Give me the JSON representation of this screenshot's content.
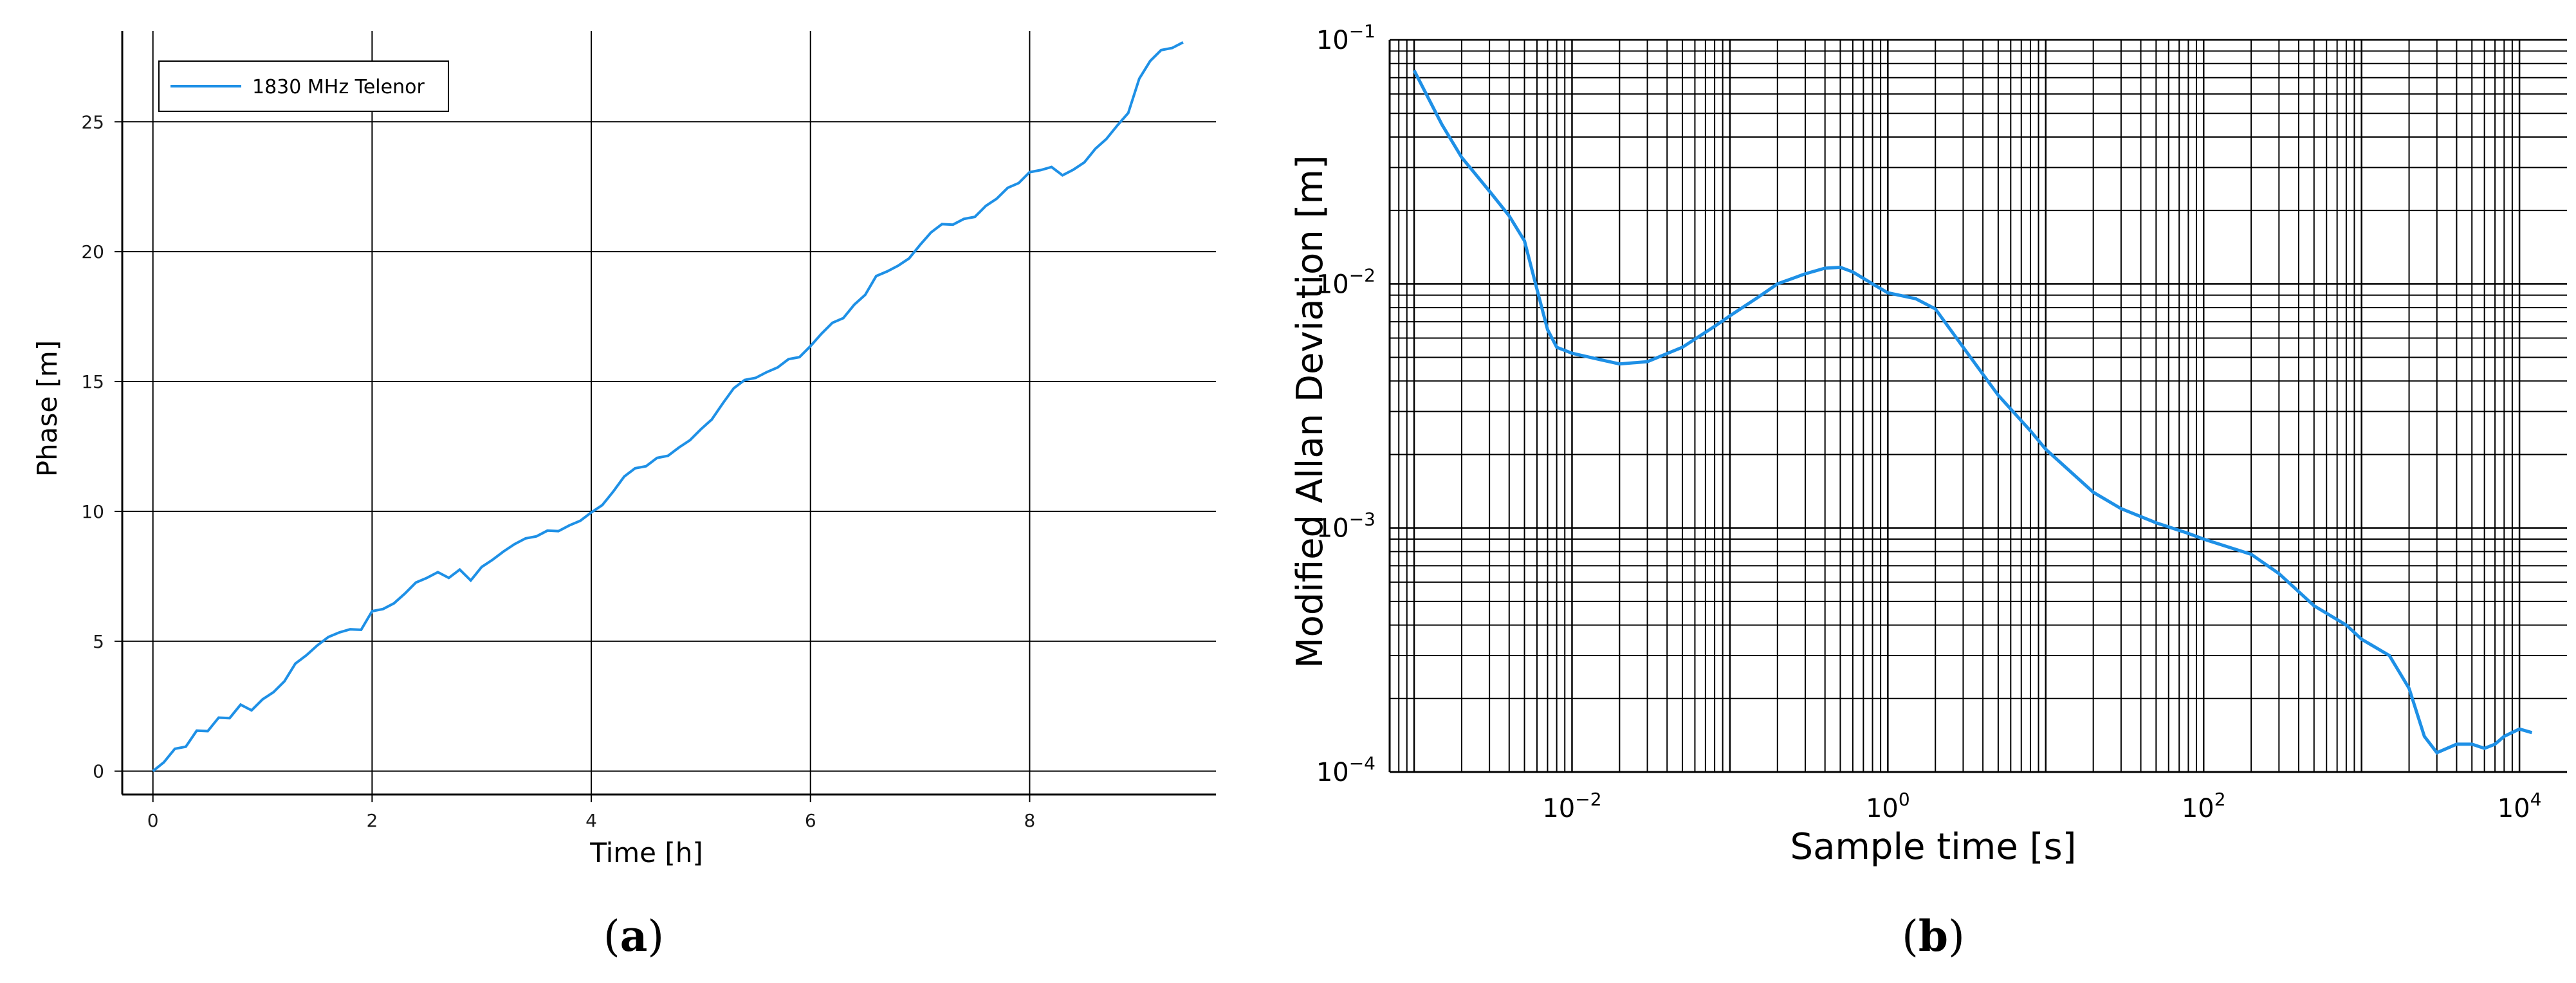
{
  "colors": {
    "series": "#1e90e6",
    "grid": "#000000",
    "axis": "#000000",
    "background": "#ffffff"
  },
  "chart_data": [
    {
      "type": "line",
      "panel_caption": "a",
      "xlabel": "Time [h]",
      "ylabel": "Phase [m]",
      "xlim": [
        -0.28,
        9.7
      ],
      "ylim": [
        -0.9,
        28.5
      ],
      "xticks": [
        0,
        2,
        4,
        6,
        8
      ],
      "yticks": [
        0,
        5,
        10,
        15,
        20,
        25
      ],
      "grid": true,
      "legend": "top-left",
      "series": [
        {
          "name": "1830 MHz Telenor",
          "x": [
            0,
            0.1,
            0.2,
            0.3,
            0.4,
            0.5,
            0.6,
            0.7,
            0.8,
            0.9,
            1.0,
            1.1,
            1.2,
            1.3,
            1.4,
            1.5,
            1.6,
            1.7,
            1.8,
            1.9,
            2.0,
            2.1,
            2.2,
            2.3,
            2.4,
            2.5,
            2.6,
            2.7,
            2.8,
            2.9,
            3.0,
            3.1,
            3.2,
            3.3,
            3.4,
            3.5,
            3.6,
            3.7,
            3.8,
            3.9,
            4.0,
            4.1,
            4.2,
            4.3,
            4.4,
            4.5,
            4.6,
            4.7,
            4.8,
            4.9,
            5.0,
            5.1,
            5.2,
            5.3,
            5.4,
            5.5,
            5.6,
            5.7,
            5.8,
            5.9,
            6.0,
            6.1,
            6.2,
            6.3,
            6.4,
            6.5,
            6.6,
            6.7,
            6.8,
            6.9,
            7.0,
            7.1,
            7.2,
            7.3,
            7.4,
            7.5,
            7.6,
            7.7,
            7.8,
            7.9,
            8.0,
            8.1,
            8.2,
            8.3,
            8.4,
            8.5,
            8.6,
            8.7,
            8.8,
            8.9,
            9.0,
            9.1,
            9.2,
            9.3,
            9.4
          ],
          "y": [
            0,
            0.4,
            0.8,
            1.0,
            1.5,
            1.6,
            2.0,
            2.1,
            2.5,
            2.4,
            2.7,
            3.1,
            3.4,
            4.2,
            4.4,
            4.9,
            5.1,
            5.4,
            5.4,
            5.5,
            6.1,
            6.3,
            6.4,
            6.9,
            7.2,
            7.5,
            7.6,
            7.5,
            7.7,
            7.4,
            7.8,
            8.2,
            8.4,
            8.8,
            8.9,
            9.1,
            9.2,
            9.3,
            9.4,
            9.7,
            9.9,
            10.3,
            10.7,
            11.4,
            11.6,
            11.8,
            12.0,
            12.2,
            12.4,
            12.8,
            13.1,
            13.6,
            14.1,
            14.8,
            15.0,
            15.2,
            15.3,
            15.6,
            15.8,
            16.0,
            16.3,
            16.9,
            17.2,
            17.5,
            17.9,
            18.4,
            19.0,
            19.3,
            19.4,
            19.8,
            20.2,
            20.8,
            21.0,
            21.1,
            21.2,
            21.4,
            21.7,
            22.1,
            22.4,
            22.7,
            23.0,
            23.2,
            23.2,
            23.0,
            23.1,
            23.5,
            23.9,
            24.4,
            24.8,
            25.4,
            26.6,
            27.4,
            27.7,
            27.9,
            28.0
          ]
        }
      ]
    },
    {
      "type": "line",
      "panel_caption": "b",
      "xlabel": "Sample time [s]",
      "ylabel": "Modified Allan Deviation [m]",
      "xscale": "log",
      "yscale": "log",
      "xlim": [
        0.0007,
        20000
      ],
      "ylim": [
        0.0001,
        0.1
      ],
      "xticks": [
        0.01,
        1,
        100,
        10000
      ],
      "xtick_labels": [
        [
          "10",
          "−2"
        ],
        [
          "10",
          "0"
        ],
        [
          "10",
          "2"
        ],
        [
          "10",
          "4"
        ]
      ],
      "yticks": [
        0.0001,
        0.001,
        0.01,
        0.1
      ],
      "ytick_labels": [
        [
          "10",
          "−4"
        ],
        [
          "10",
          "−3"
        ],
        [
          "10",
          "−2"
        ],
        [
          "10",
          "−1"
        ]
      ],
      "grid": true,
      "legend": "none",
      "series": [
        {
          "x": [
            0.001,
            0.0015,
            0.002,
            0.003,
            0.004,
            0.005,
            0.006,
            0.007,
            0.008,
            0.01,
            0.015,
            0.02,
            0.03,
            0.05,
            0.08,
            0.1,
            0.15,
            0.2,
            0.3,
            0.4,
            0.5,
            0.6,
            0.8,
            1.0,
            1.5,
            2,
            3,
            5,
            8,
            10,
            20,
            30,
            50,
            80,
            100,
            200,
            300,
            500,
            800,
            1000,
            1500,
            2000,
            2500,
            3000,
            4000,
            5000,
            6000,
            7000,
            8000,
            10000,
            12000
          ],
          "y": [
            0.075,
            0.045,
            0.033,
            0.024,
            0.019,
            0.015,
            0.0095,
            0.0065,
            0.0055,
            0.0052,
            0.0049,
            0.0047,
            0.0048,
            0.0055,
            0.0067,
            0.0074,
            0.0088,
            0.01,
            0.011,
            0.0116,
            0.0117,
            0.0112,
            0.01,
            0.0092,
            0.0087,
            0.0079,
            0.0055,
            0.0035,
            0.0025,
            0.0021,
            0.0014,
            0.0012,
            0.00105,
            0.00095,
            0.0009,
            0.00078,
            0.00065,
            0.00048,
            0.0004,
            0.00035,
            0.0003,
            0.00022,
            0.00014,
            0.00012,
            0.00013,
            0.00013,
            0.000125,
            0.00013,
            0.00014,
            0.00015,
            0.000145
          ]
        }
      ]
    }
  ]
}
